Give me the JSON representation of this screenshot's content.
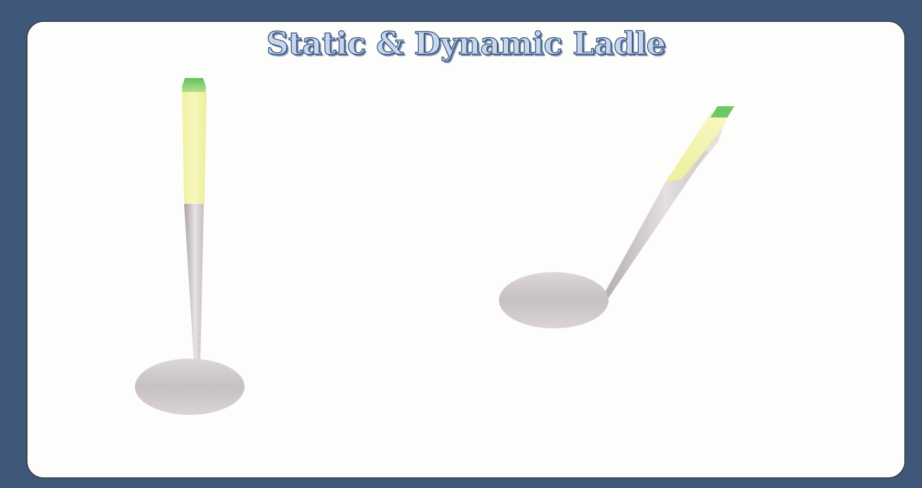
{
  "title": "Static & Dynamic Ladle",
  "colors": {
    "background": "#3f5779",
    "card": "#fdfdfb",
    "title_fill": "#c9d7ec",
    "title_stroke": "#2f4c78",
    "handle_grip": "#f3f4a6",
    "handle_tip": "#6cc764",
    "metal_light": "#e2dde0",
    "metal_dark": "#b9b2b8"
  },
  "ladles": [
    {
      "name": "static-ladle"
    },
    {
      "name": "dynamic-ladle"
    }
  ]
}
